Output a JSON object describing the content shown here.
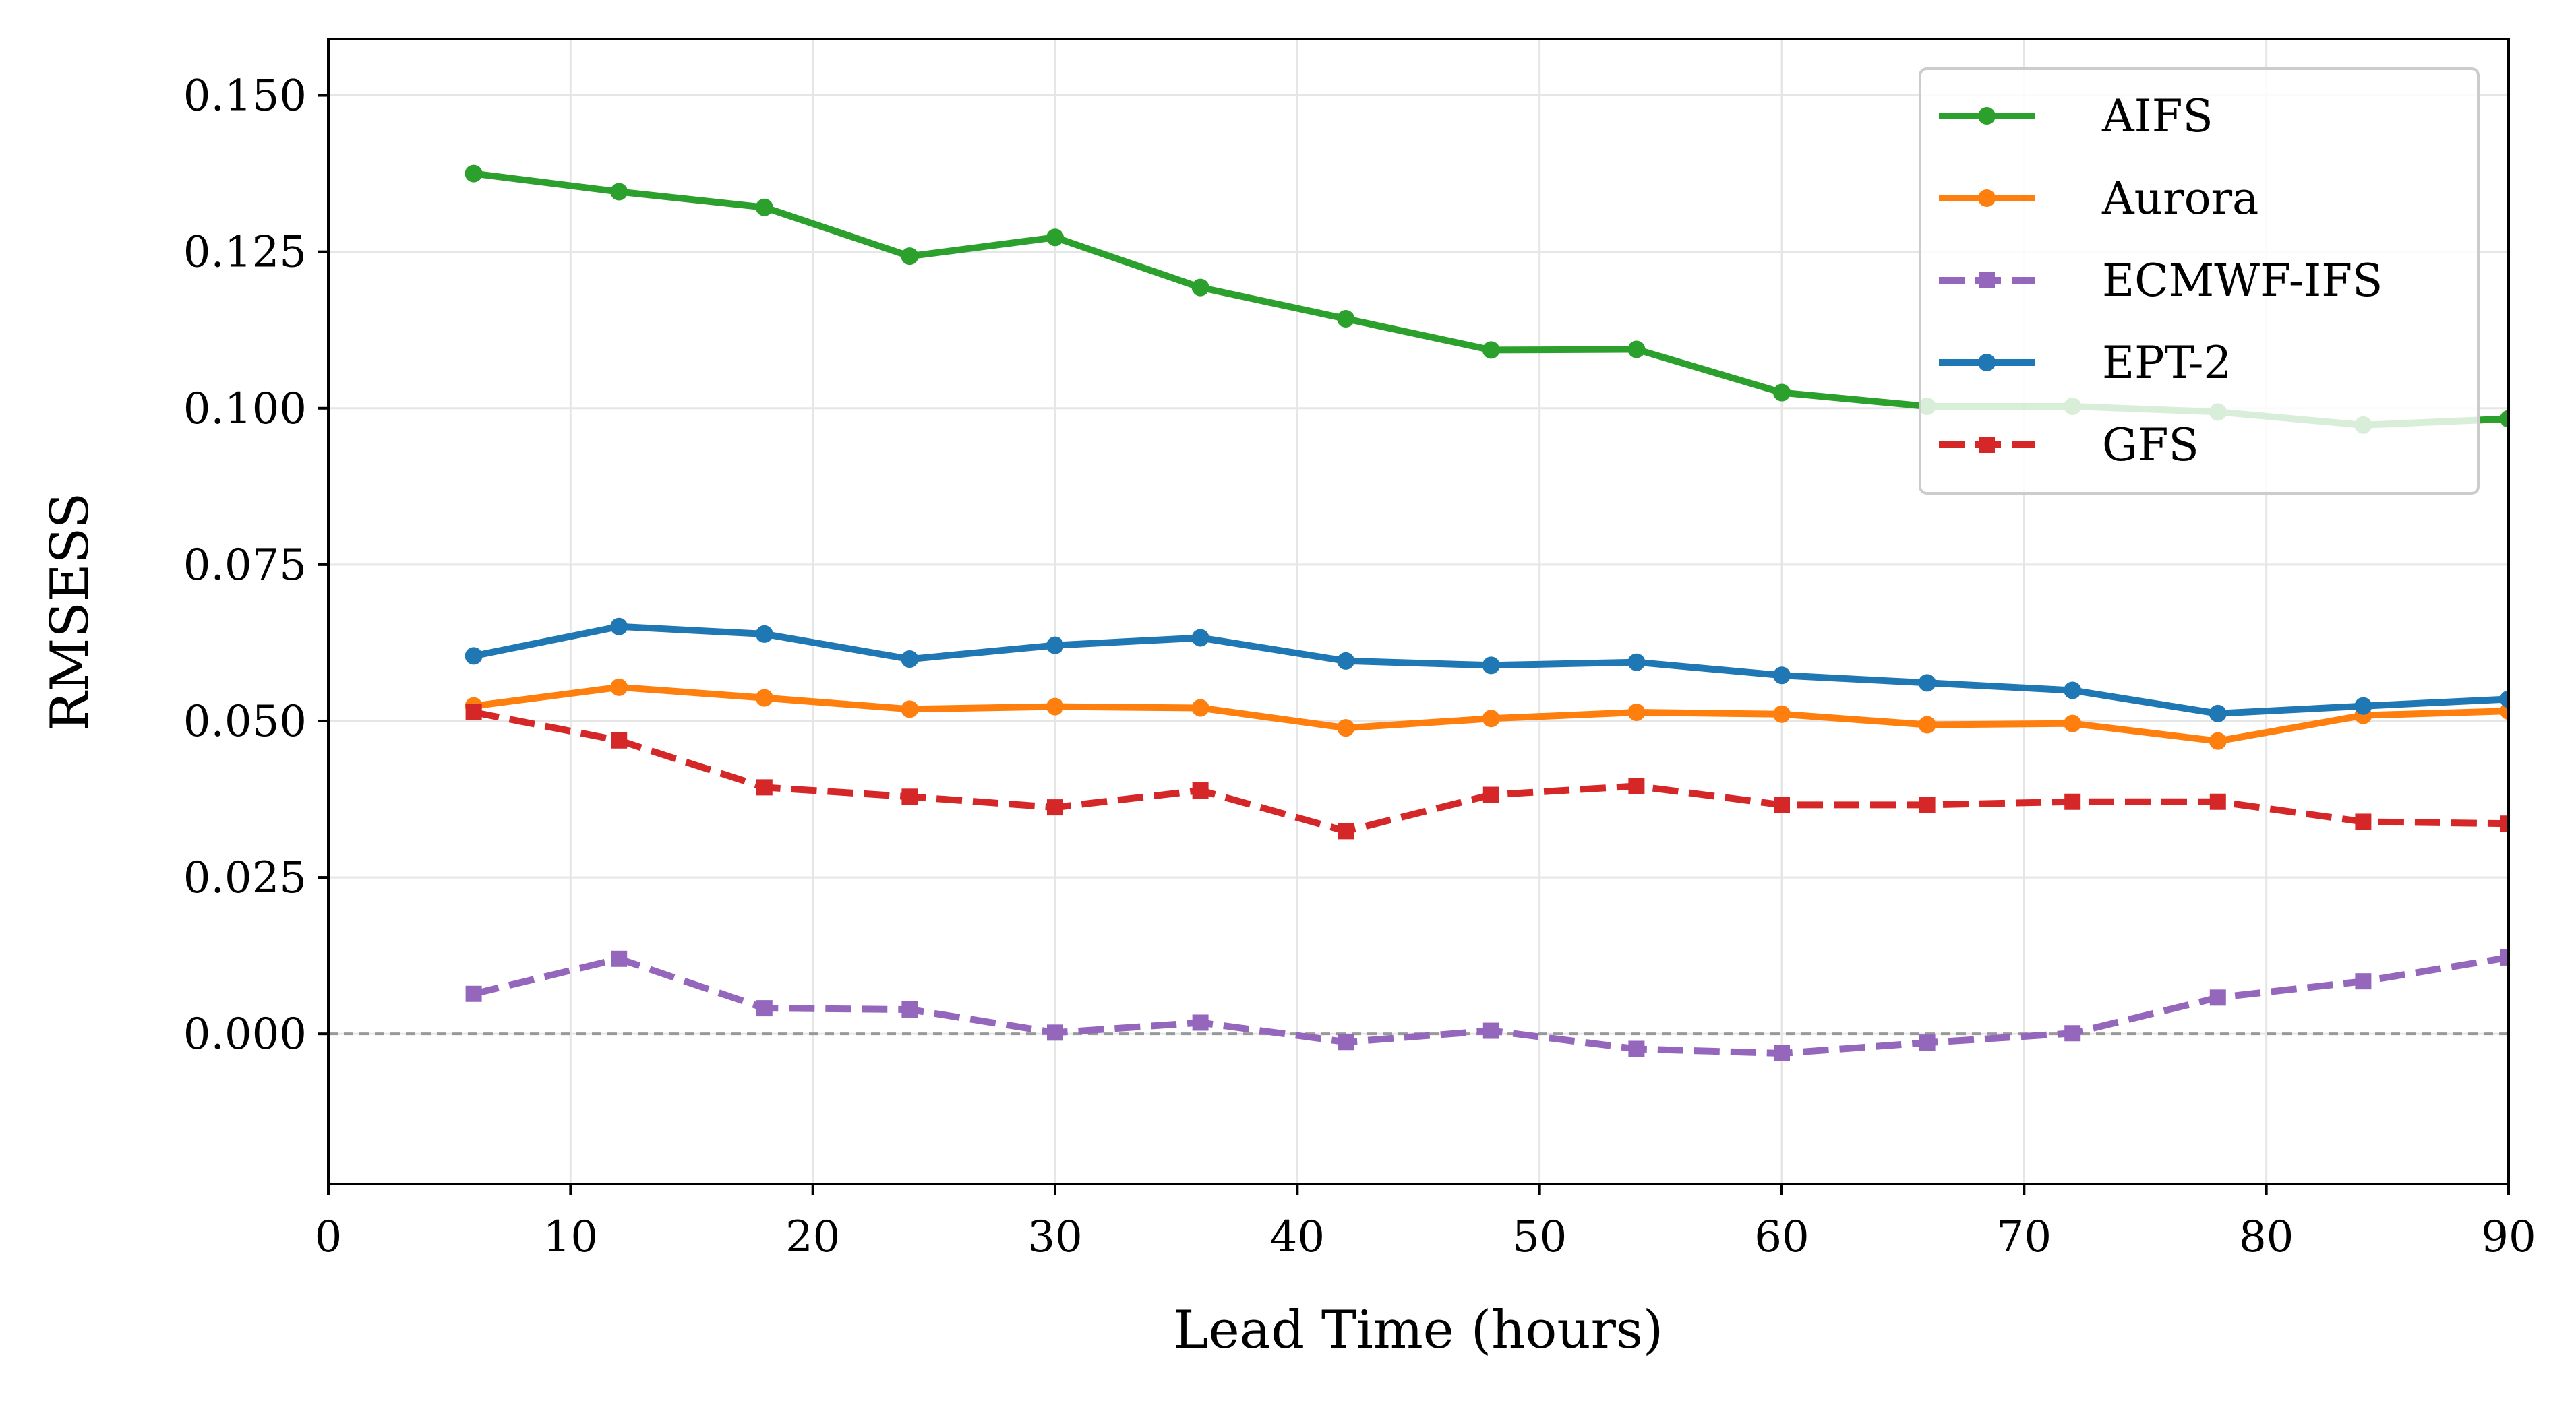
{
  "chart_data": {
    "type": "line",
    "title": "",
    "xlabel": "Lead Time (hours)",
    "ylabel": "RMSESS",
    "xlim": [
      0,
      90
    ],
    "ylim": [
      -0.024,
      0.159
    ],
    "xticks": [
      0,
      10,
      20,
      30,
      40,
      50,
      60,
      70,
      80,
      90
    ],
    "xtick_labels": [
      "0",
      "10",
      "20",
      "30",
      "40",
      "50",
      "60",
      "70",
      "80",
      "90"
    ],
    "yticks": [
      0.0,
      0.025,
      0.05,
      0.075,
      0.1,
      0.125,
      0.15
    ],
    "ytick_labels": [
      "0.000",
      "0.025",
      "0.050",
      "0.075",
      "0.100",
      "0.125",
      "0.150"
    ],
    "grid": true,
    "reference_line": {
      "y": 0,
      "style": "dashed",
      "color": "#999999"
    },
    "legend_position": "top-right",
    "x": [
      6,
      12,
      18,
      24,
      30,
      36,
      42,
      48,
      54,
      60,
      66,
      72,
      78,
      84,
      90
    ],
    "series": [
      {
        "name": "AIFS",
        "color": "#2ca02c",
        "dash": "solid",
        "marker": "circle",
        "values": [
          0.1375,
          0.1346,
          0.1321,
          0.1243,
          0.1273,
          0.1193,
          0.1143,
          0.1093,
          0.1094,
          0.1025,
          0.1003,
          0.1003,
          0.0994,
          0.0973,
          0.0983
        ]
      },
      {
        "name": "Aurora",
        "color": "#ff7f0e",
        "dash": "solid",
        "marker": "circle",
        "values": [
          0.0524,
          0.0554,
          0.0537,
          0.0519,
          0.0523,
          0.0521,
          0.0489,
          0.0504,
          0.0514,
          0.0511,
          0.0494,
          0.0496,
          0.0468,
          0.0509,
          0.0516
        ]
      },
      {
        "name": "ECMWF-IFS",
        "color": "#9467bd",
        "dash": "dashed",
        "marker": "square",
        "values": [
          0.0064,
          0.012,
          0.0041,
          0.0039,
          0.0002,
          0.0018,
          -0.0013,
          0.0005,
          -0.0024,
          -0.0031,
          -0.0014,
          0.0001,
          0.0058,
          0.0084,
          0.0122
        ]
      },
      {
        "name": "EPT-2",
        "color": "#1f77b4",
        "dash": "solid",
        "marker": "circle",
        "values": [
          0.0604,
          0.0651,
          0.0639,
          0.0599,
          0.0621,
          0.0633,
          0.0596,
          0.0589,
          0.0594,
          0.0573,
          0.0561,
          0.0549,
          0.0512,
          0.0524,
          0.0535
        ]
      },
      {
        "name": "GFS",
        "color": "#d62728",
        "dash": "dashed",
        "marker": "square",
        "values": [
          0.0514,
          0.0469,
          0.0394,
          0.0379,
          0.0362,
          0.0389,
          0.0324,
          0.0382,
          0.0396,
          0.0366,
          0.0366,
          0.0371,
          0.0371,
          0.0339,
          0.0336
        ]
      }
    ]
  }
}
